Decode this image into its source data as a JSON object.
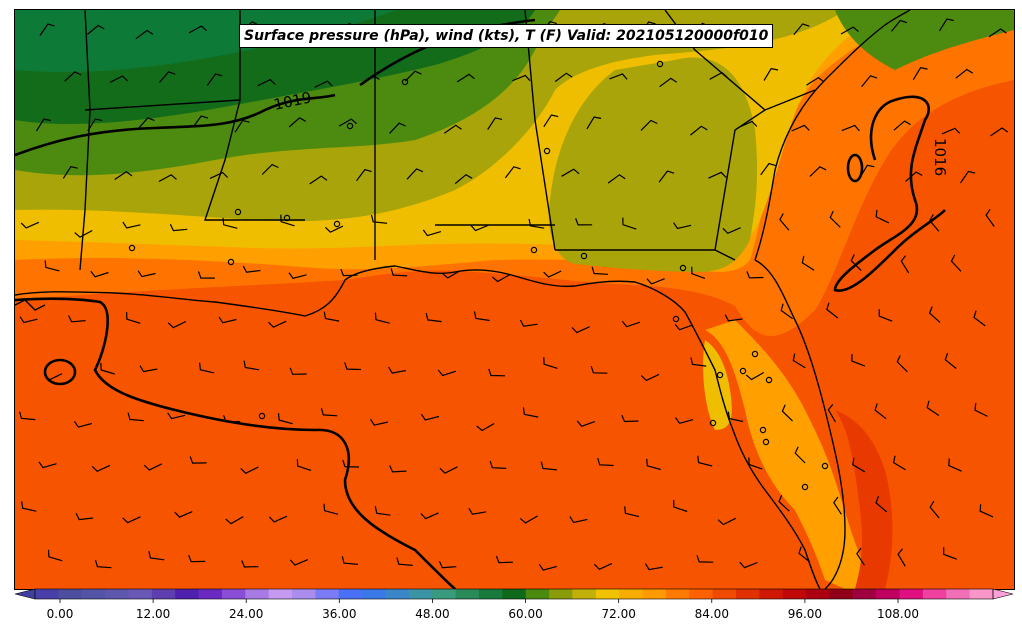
{
  "title": "Surface pressure (hPa), wind (kts), T (F) Valid: 202105120000f010",
  "isobars": [
    {
      "label": "1019"
    },
    {
      "label": "1016"
    }
  ],
  "colorbar": {
    "ticks": [
      "0.00",
      "12.00",
      "24.00",
      "36.00",
      "48.00",
      "60.00",
      "72.00",
      "84.00",
      "96.00",
      "108.00"
    ],
    "colors": [
      "#4a3fa8",
      "#4e4e9e",
      "#5454a6",
      "#5f56ae",
      "#6a58b6",
      "#5f3fb0",
      "#4f1fae",
      "#6a2ac2",
      "#8a4ed6",
      "#a77ae6",
      "#c49af0",
      "#a98ef0",
      "#7b7cf5",
      "#4a71f5",
      "#3a78e8",
      "#3a86c8",
      "#3b94a6",
      "#3a9a7e",
      "#2a8a5a",
      "#197a3e",
      "#0e6a1a",
      "#4a8a0e",
      "#8a9c0a",
      "#c2b00a",
      "#f0c200",
      "#f7ad00",
      "#ff9a00",
      "#ff7a00",
      "#ff6000",
      "#f04a00",
      "#e03000",
      "#d01800",
      "#c00808",
      "#aa0010",
      "#900018",
      "#a00040",
      "#c00060",
      "#e01080",
      "#f040a0",
      "#f070b8",
      "#f896c8"
    ],
    "under_color": "#3f3fa0",
    "over_color": "#ffa0d8"
  },
  "map": {
    "station_count_visible": 23
  }
}
